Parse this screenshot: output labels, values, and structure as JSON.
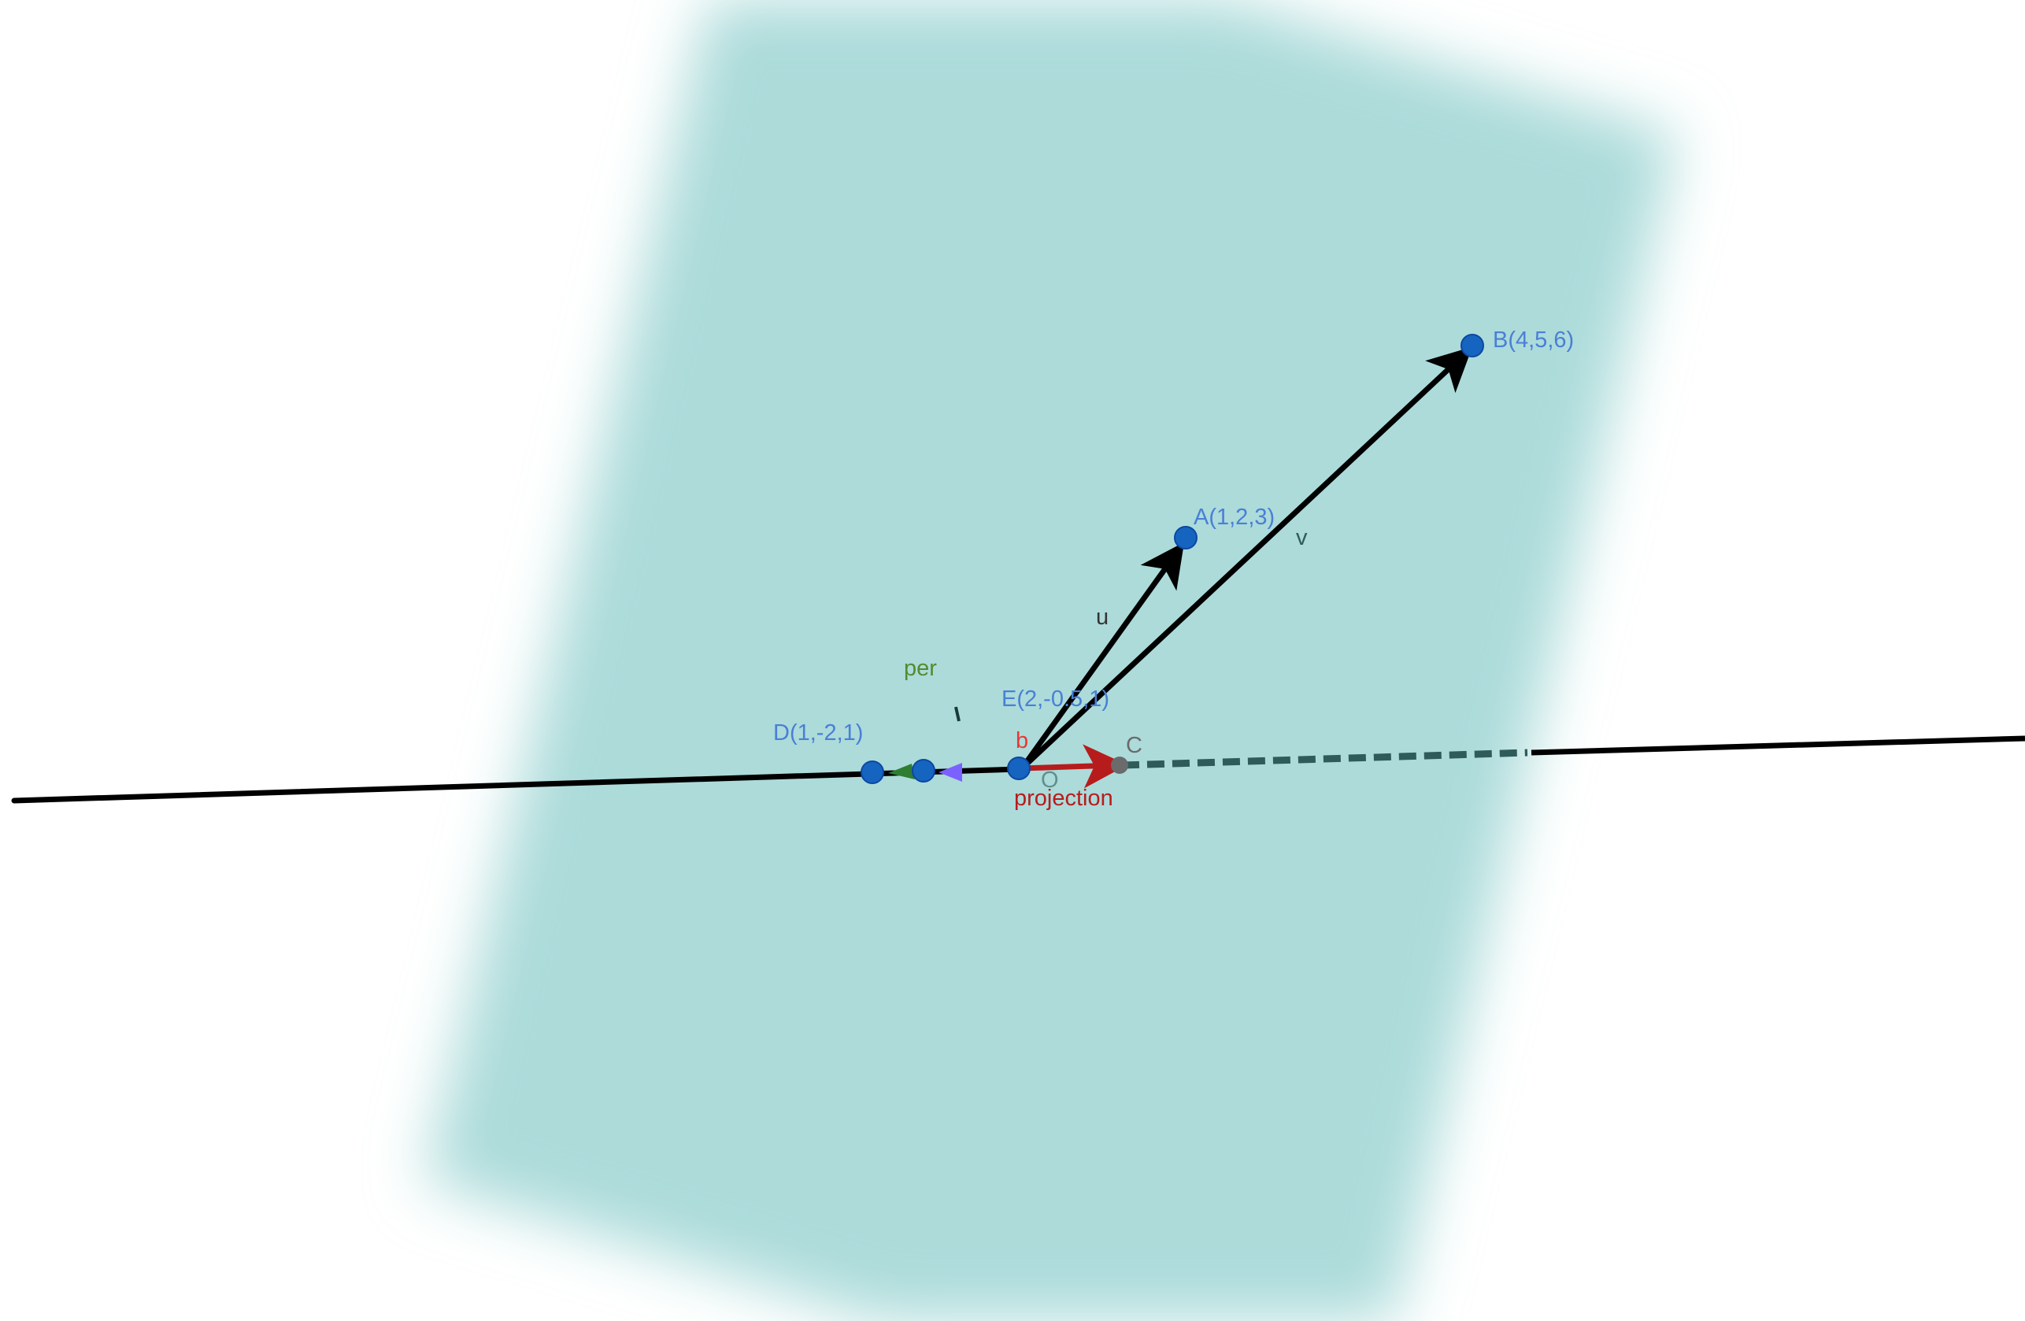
{
  "scene": {
    "background": "#ffffff",
    "plane_color": "#acdbda",
    "line_color": "#000000",
    "dashed_color": "#2f5c5a",
    "point_color": "#1565c0",
    "point_label_color": "#4a7fd6"
  },
  "points": {
    "A": {
      "label": "A(1,2,3)"
    },
    "B": {
      "label": "B(4,5,6)"
    },
    "C": {
      "label": "C",
      "color": "#6b6b6b"
    },
    "D": {
      "label": "D(1,-2,1)"
    },
    "E": {
      "label": "E(2,-0.5,1)"
    },
    "O": {
      "label": "O"
    }
  },
  "vectors": {
    "u": {
      "label": "u",
      "color": "#000000"
    },
    "v": {
      "label": "v",
      "color": "#000000"
    },
    "b": {
      "label": "b",
      "color": "#e53935"
    },
    "projection": {
      "label": "projection",
      "color": "#b71c1c"
    },
    "per": {
      "label": "per",
      "color": "#558b2f"
    },
    "per_tail_color": "#2e7d32",
    "small_vector_color": "#7b61ff"
  },
  "line": {
    "label": "l"
  }
}
